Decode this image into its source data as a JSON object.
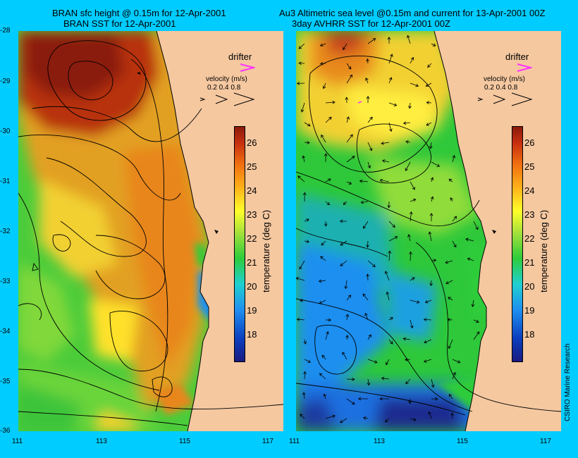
{
  "left": {
    "title_line1": "BRAN sfc height @ 0.15m for 12-Apr-2001",
    "title_line2": "BRAN SST for 12-Apr-2001"
  },
  "right": {
    "title_line1": "Au3 Altimetric sea level  @0.15m and current for 13-Apr-2001 00Z",
    "title_line2": "3day AVHRR SST for 12-Apr-2001 00Z"
  },
  "latitude_ticks": [
    "-28",
    "-29",
    "-30",
    "-31",
    "-32",
    "-33",
    "-34",
    "-35",
    "-36"
  ],
  "longitude_ticks": [
    "111",
    "113",
    "115",
    "117"
  ],
  "legend": {
    "drifter_label": "drifter",
    "velocity_label": "velocity (m/s)",
    "velocity_values": "0.2 0.4 0.8"
  },
  "colorbar": {
    "title": "temperature (deg C)",
    "ticks": [
      "26",
      "25",
      "24",
      "23",
      "22",
      "21",
      "20",
      "19",
      "18"
    ],
    "range": [
      17,
      27
    ]
  },
  "credit": "CSIRO Marine Research",
  "colors": {
    "background": "#00ccff",
    "land": "#f5c8a0",
    "drifter": "#ff33ff"
  }
}
